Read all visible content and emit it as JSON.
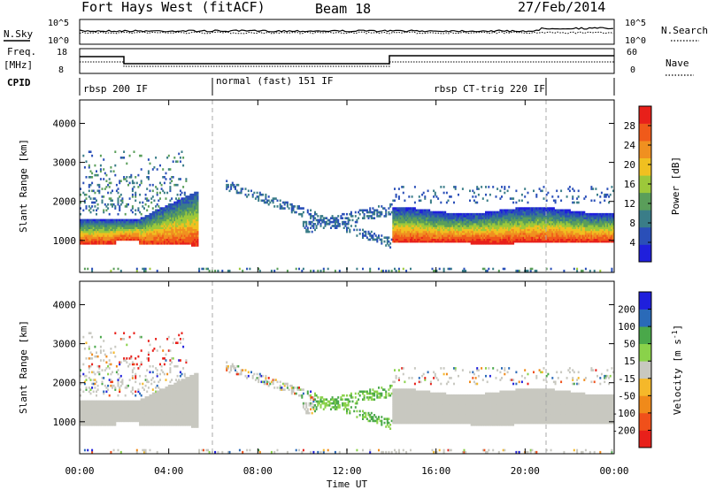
{
  "header": {
    "radar": "Fort Hays West (fitACF)",
    "beam": "Beam 18",
    "date": "27/Feb/2014"
  },
  "summary": {
    "nsky_label": "N.Sky",
    "nsky_ticks": [
      "10^5",
      "10^0"
    ],
    "nsearch_label": "N.Search",
    "nsearch_ticks": [
      "10^5",
      "10^0"
    ],
    "freq_label": "Freq.",
    "freq_unit": "[MHz]",
    "freq_ticks": [
      "18",
      "8"
    ],
    "nave_label": "Nave",
    "nave_ticks": [
      "60",
      "0"
    ],
    "cpid_label": "CPID",
    "modes": [
      "rbsp 200 IF",
      "normal (fast) 151 IF",
      "rbsp CT-trig 220 IF"
    ]
  },
  "colors": {
    "power_scale": [
      "#1f1fdc",
      "#2a4fb8",
      "#3a7d88",
      "#5a9e5a",
      "#9cc83a",
      "#f0c020",
      "#f09020",
      "#f05a1a",
      "#e8201a"
    ],
    "velocity_scale": [
      "#e8201a",
      "#f0501a",
      "#f08a1a",
      "#f5b82a",
      "#c8c8c0",
      "#8ad24a",
      "#4aa84a",
      "#2a6ab8",
      "#1f1fdc"
    ],
    "ground_scatter": "#c8c8c0"
  },
  "chart_data": [
    {
      "type": "heatmap",
      "name": "power",
      "xlabel": "",
      "ylabel": "Slant Range [km]",
      "x_ticks": [
        "00:00",
        "04:00",
        "08:00",
        "12:00",
        "16:00",
        "20:00",
        "00:00"
      ],
      "y_ticks": [
        "1000",
        "2000",
        "3000",
        "4000"
      ],
      "xlim": [
        0,
        24
      ],
      "ylim": [
        180,
        4600
      ],
      "colorbar": {
        "label": "Power [dB]",
        "ticks": [
          "28",
          "24",
          "20",
          "16",
          "12",
          "8",
          "4"
        ],
        "range": [
          0,
          30
        ]
      },
      "mode_boundaries_hours": [
        5.9,
        21.0
      ],
      "features": [
        {
          "name": "main echo band",
          "t_start": 0.0,
          "t_end": 5.3,
          "range_low": 900,
          "range_high": 1600,
          "peak_db": 28
        },
        {
          "name": "late echo band",
          "t_start": 14.0,
          "t_end": 24.0,
          "range_low": 950,
          "range_high": 2000,
          "peak_db": 28
        },
        {
          "name": "diagonal scatter",
          "t_start": 6.5,
          "t_end": 14.0,
          "range_low": 800,
          "range_high": 2500,
          "peak_db": 8
        }
      ]
    },
    {
      "type": "heatmap",
      "name": "velocity",
      "xlabel": "Time UT",
      "ylabel": "Slant Range [km]",
      "x_ticks": [
        "00:00",
        "04:00",
        "08:00",
        "12:00",
        "16:00",
        "20:00",
        "00:00"
      ],
      "y_ticks": [
        "1000",
        "2000",
        "3000",
        "4000"
      ],
      "xlim": [
        0,
        24
      ],
      "ylim": [
        180,
        4600
      ],
      "colorbar": {
        "label": "Velocity [m s",
        "label_sup": "-1",
        "label_end": "]",
        "ticks": [
          "200",
          "100",
          "50",
          "15",
          "-15",
          "-50",
          "-100",
          "-200"
        ],
        "range": [
          -250,
          250
        ]
      },
      "features": [
        {
          "name": "ground scatter band",
          "t_start": 0.0,
          "t_end": 5.3,
          "range_low": 900,
          "range_high": 1700
        },
        {
          "name": "ground scatter late",
          "t_start": 14.0,
          "t_end": 24.0,
          "range_low": 950,
          "range_high": 2000
        },
        {
          "name": "positive velocity patch",
          "t_start": 10.5,
          "t_end": 14.0,
          "range_low": 900,
          "range_high": 2000,
          "velocity": 30
        },
        {
          "name": "negative velocity patch",
          "t_start": 1.5,
          "t_end": 5.0,
          "range_low": 2400,
          "range_high": 3300,
          "velocity": -200
        }
      ]
    }
  ]
}
